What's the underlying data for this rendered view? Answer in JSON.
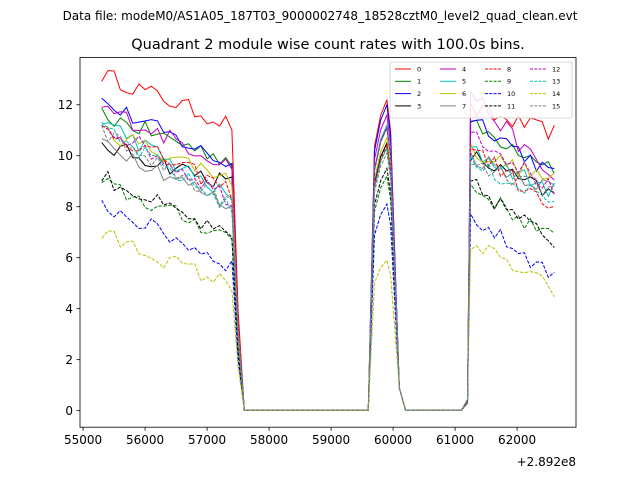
{
  "header": {
    "data_file_label": "Data file: modeM0/AS1A05_187T03_9000002748_18528cztM0_level2_quad_clean.evt"
  },
  "chart_data": {
    "type": "line",
    "title": "Quadrant 2 module wise count rates with 100.0s bins.",
    "xlabel": "",
    "ylabel": "",
    "x_offset_label": "+2.892e8",
    "x_offset": 289200000,
    "xlim": [
      54950,
      62950
    ],
    "ylim": [
      -0.65,
      13.85
    ],
    "x_ticks": [
      55000,
      56000,
      57000,
      58000,
      59000,
      60000,
      61000,
      62000
    ],
    "x_tick_labels": [
      "55000",
      "56000",
      "57000",
      "58000",
      "59000",
      "60000",
      "61000",
      "62000"
    ],
    "y_ticks": [
      0,
      2,
      4,
      6,
      8,
      10,
      12
    ],
    "y_tick_labels": [
      "0",
      "2",
      "4",
      "6",
      "8",
      "10",
      "12"
    ],
    "grid": false,
    "legend_position": "top-right",
    "segments": [
      {
        "x_start": 55300,
        "x_end": 57400,
        "n": 22
      },
      {
        "x_start": 57500,
        "x_end": 57600,
        "n": 2
      },
      {
        "x_start": 57700,
        "x_end": 59600,
        "n": 20,
        "flat": true
      },
      {
        "x_start": 59700,
        "x_end": 59960,
        "n": 4
      },
      {
        "x_start": 60100,
        "x_end": 60200,
        "n": 2
      },
      {
        "x_start": 60300,
        "x_end": 61100,
        "n": 9,
        "flat": true
      },
      {
        "x_start": 61250,
        "x_end": 62600,
        "n": 15
      }
    ],
    "series": [
      {
        "name": "0",
        "color": "#ff0000",
        "dashed": false,
        "levels": [
          13.2,
          11.2,
          12.2,
          11.8,
          10.9
        ]
      },
      {
        "name": "1",
        "color": "#008000",
        "dashed": false,
        "levels": [
          11.6,
          9.8,
          11.1,
          11.2,
          9.6
        ]
      },
      {
        "name": "2",
        "color": "#0000ff",
        "dashed": false,
        "levels": [
          12.1,
          9.6,
          12.0,
          11.6,
          9.2
        ]
      },
      {
        "name": "3",
        "color": "#000000",
        "dashed": false,
        "levels": [
          10.4,
          8.9,
          10.5,
          10.0,
          8.4
        ]
      },
      {
        "name": "4",
        "color": "#bf00bf",
        "dashed": false,
        "levels": [
          11.9,
          9.6,
          11.6,
          12.5,
          9.0
        ]
      },
      {
        "name": "5",
        "color": "#00bfbf",
        "dashed": false,
        "levels": [
          11.4,
          8.3,
          11.2,
          10.2,
          8.6
        ]
      },
      {
        "name": "6",
        "color": "#bfbf00",
        "dashed": false,
        "levels": [
          11.0,
          9.1,
          10.7,
          10.2,
          9.0
        ]
      },
      {
        "name": "7",
        "color": "#808080",
        "dashed": false,
        "levels": [
          10.6,
          8.0,
          10.3,
          10.0,
          8.7
        ]
      },
      {
        "name": "8",
        "color": "#ff0000",
        "dashed": true,
        "levels": [
          11.1,
          8.6,
          10.4,
          10.4,
          7.8
        ]
      },
      {
        "name": "9",
        "color": "#008000",
        "dashed": true,
        "levels": [
          8.9,
          6.8,
          9.2,
          8.8,
          6.7
        ]
      },
      {
        "name": "10",
        "color": "#0000ff",
        "dashed": true,
        "levels": [
          8.1,
          5.7,
          8.1,
          7.6,
          5.3
        ]
      },
      {
        "name": "11",
        "color": "#000000",
        "dashed": true,
        "levels": [
          9.2,
          6.7,
          9.5,
          8.9,
          6.6
        ]
      },
      {
        "name": "12",
        "color": "#bf00bf",
        "dashed": true,
        "levels": [
          11.3,
          8.3,
          11.1,
          11.0,
          8.6
        ]
      },
      {
        "name": "13",
        "color": "#00bfbf",
        "dashed": true,
        "levels": [
          11.0,
          8.0,
          10.3,
          9.7,
          8.2
        ]
      },
      {
        "name": "14",
        "color": "#bfbf00",
        "dashed": true,
        "levels": [
          6.9,
          4.9,
          5.9,
          6.6,
          4.7
        ]
      },
      {
        "name": "15",
        "color": "#808080",
        "dashed": true,
        "levels": [
          10.9,
          8.1,
          10.1,
          9.6,
          8.6
        ]
      }
    ]
  }
}
